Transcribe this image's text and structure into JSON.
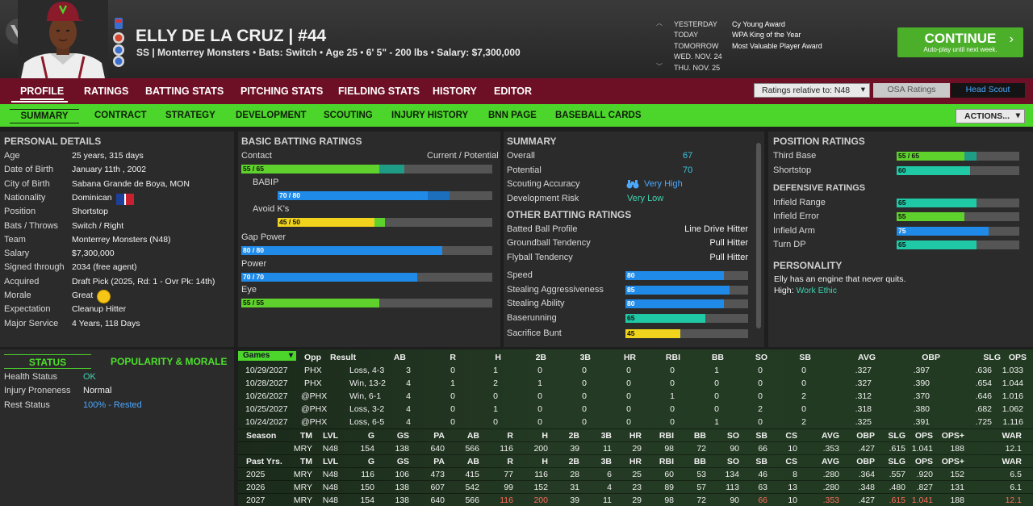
{
  "player": {
    "name": "ELLY DE LA CRUZ",
    "sep": "|",
    "number": "#44",
    "position_team": "SS | Monterrey Monsters",
    "bats": "Bats: Switch",
    "age": "Age 25",
    "height_weight": "6' 5\" - 200 lbs",
    "salary": "Salary: $7,300,000",
    "dot": "•"
  },
  "calendar": [
    {
      "day": "YESTERDAY",
      "event": "Cy Young Award"
    },
    {
      "day": "TODAY",
      "event": "WPA King of the Year"
    },
    {
      "day": "TOMORROW",
      "event": "Most Valuable Player Award"
    },
    {
      "day": "WED. NOV. 24",
      "event": ""
    },
    {
      "day": "THU. NOV. 25",
      "event": ""
    }
  ],
  "calendar_up": "︿",
  "calendar_down": "﹀",
  "continue": {
    "label": "CONTINUE",
    "sub": "Auto-play until next week.",
    "chev": "›"
  },
  "main_tabs": [
    "PROFILE",
    "RATINGS",
    "BATTING STATS",
    "PITCHING STATS",
    "FIELDING STATS",
    "HISTORY",
    "EDITOR"
  ],
  "ratings_relative": "Ratings relative to: N48",
  "dropdown_arrow": "▾",
  "osa_ratings": "OSA Ratings",
  "head_scout": "Head Scout",
  "sub_tabs": [
    "SUMMARY",
    "CONTRACT",
    "STRATEGY",
    "DEVELOPMENT",
    "SCOUTING",
    "INJURY HISTORY",
    "BNN PAGE",
    "BASEBALL CARDS"
  ],
  "actions": "ACTIONS...",
  "personal": {
    "title": "PERSONAL DETAILS",
    "rows": [
      {
        "label": "Age",
        "value": "25 years, 315 days"
      },
      {
        "label": "Date of Birth",
        "value": "January 11th , 2002"
      },
      {
        "label": "City of Birth",
        "value": "Sabana Grande de Boya, MON"
      },
      {
        "label": "Nationality",
        "value": "Dominican"
      },
      {
        "label": "Position",
        "value": "Shortstop"
      },
      {
        "label": "Bats / Throws",
        "value": "Switch / Right"
      },
      {
        "label": "Team",
        "value": "Monterrey Monsters (N48)"
      },
      {
        "label": "Salary",
        "value": "$7,300,000"
      },
      {
        "label": "Signed through",
        "value": "2034 (free agent)"
      },
      {
        "label": "Acquired",
        "value": "Draft Pick (2025, Rd: 1 - Ovr Pk: 14th)"
      },
      {
        "label": "Morale",
        "value": "Great"
      },
      {
        "label": "Expectation",
        "value": "Cleanup Hitter"
      },
      {
        "label": "Major Service",
        "value": "4 Years, 118 Days"
      }
    ]
  },
  "batting": {
    "title": "BASIC BATTING RATINGS",
    "current_potential": "Current / Potential",
    "rows": [
      {
        "label": "Contact",
        "text": "55 / 65",
        "cur": 55,
        "pot": 65,
        "color": "#5fd12c",
        "color2": "#1e9c86",
        "indent": false
      },
      {
        "label": "BABIP",
        "text": "70 / 80",
        "cur": 70,
        "pot": 80,
        "color": "#1f8ae8",
        "color2": "#1c6fbd",
        "indent": true
      },
      {
        "label": "Avoid K's",
        "text": "45 / 50",
        "cur": 45,
        "pot": 50,
        "color": "#f0d31c",
        "color2": "#5fd12c",
        "indent": true
      },
      {
        "label": "Gap Power",
        "text": "80 / 80",
        "cur": 80,
        "pot": 80,
        "color": "#1f8ae8",
        "color2": "#1f8ae8",
        "indent": false
      },
      {
        "label": "Power",
        "text": "70 / 70",
        "cur": 70,
        "pot": 70,
        "color": "#1f8ae8",
        "color2": "#1f8ae8",
        "indent": false
      },
      {
        "label": "Eye",
        "text": "55 / 55",
        "cur": 55,
        "pot": 55,
        "color": "#5fd12c",
        "color2": "#5fd12c",
        "indent": false
      }
    ]
  },
  "summary": {
    "title": "SUMMARY",
    "overall_label": "Overall",
    "overall": "67",
    "potential_label": "Potential",
    "potential": "70",
    "scouting_label": "Scouting Accuracy",
    "scouting": "Very High",
    "devrisk_label": "Development Risk",
    "devrisk": "Very Low",
    "other_title": "OTHER BATTING RATINGS",
    "profiles": [
      {
        "label": "Batted Ball Profile",
        "value": "Line Drive Hitter"
      },
      {
        "label": "Groundball Tendency",
        "value": "Pull Hitter"
      },
      {
        "label": "Flyball Tendency",
        "value": "Pull Hitter"
      }
    ],
    "bars": [
      {
        "label": "Speed",
        "value": 80,
        "text": "80",
        "color": "#1f8ae8"
      },
      {
        "label": "Stealing Aggressiveness",
        "value": 85,
        "text": "85",
        "color": "#1f8ae8"
      },
      {
        "label": "Stealing Ability",
        "value": 80,
        "text": "80",
        "color": "#1f8ae8"
      },
      {
        "label": "Baserunning",
        "value": 65,
        "text": "65",
        "color": "#1fc9a6"
      },
      {
        "label": "Sacrifice Bunt",
        "value": 45,
        "text": "45",
        "color": "#f0d31c"
      }
    ]
  },
  "position": {
    "title": "POSITION RATINGS",
    "rows": [
      {
        "label": "Third Base",
        "text": "55 / 65",
        "cur": 55,
        "pot": 65,
        "color": "#5fd12c",
        "color2": "#1e9c86"
      },
      {
        "label": "Shortstop",
        "text": "60",
        "cur": 60,
        "pot": 60,
        "color": "#1fc9a6",
        "color2": "#1fc9a6"
      }
    ],
    "def_title": "DEFENSIVE RATINGS",
    "def": [
      {
        "label": "Infield Range",
        "text": "65",
        "value": 65,
        "color": "#1fc9a6"
      },
      {
        "label": "Infield Error",
        "text": "55",
        "value": 55,
        "color": "#5fd12c"
      },
      {
        "label": "Infield Arm",
        "text": "75",
        "value": 75,
        "color": "#1f8ae8"
      },
      {
        "label": "Turn DP",
        "text": "65",
        "value": 65,
        "color": "#1fc9a6"
      }
    ],
    "personality_title": "PERSONALITY",
    "personality_text": "Elly has an engine that never quits.",
    "high_label": "High:",
    "high_value": "Work Ethic"
  },
  "status": {
    "tab_status": "STATUS",
    "tab_pop": "POPULARITY & MORALE",
    "rows": [
      {
        "label": "Health Status",
        "value": "OK",
        "color": "#3ed3b0"
      },
      {
        "label": "Injury Proneness",
        "value": "Normal",
        "color": "#f0f0f0"
      },
      {
        "label": "Rest Status",
        "value": "100% - Rested",
        "color": "#4aa8ff"
      }
    ]
  },
  "games": {
    "select": "Games",
    "headers": [
      "Opp",
      "Result",
      "AB",
      "R",
      "H",
      "2B",
      "3B",
      "HR",
      "RBI",
      "BB",
      "SO",
      "SB",
      "AVG",
      "OBP",
      "SLG",
      "OPS"
    ],
    "rows": [
      [
        "10/29/2027",
        "PHX",
        "Loss, 4-3",
        "3",
        "0",
        "1",
        "0",
        "0",
        "0",
        "0",
        "1",
        "0",
        "0",
        ".327",
        ".397",
        ".636",
        "1.033"
      ],
      [
        "10/28/2027",
        "PHX",
        "Win, 13-2",
        "4",
        "1",
        "2",
        "1",
        "0",
        "0",
        "0",
        "0",
        "0",
        "0",
        ".327",
        ".390",
        ".654",
        "1.044"
      ],
      [
        "10/26/2027",
        "@PHX",
        "Win, 6-1",
        "4",
        "0",
        "0",
        "0",
        "0",
        "0",
        "1",
        "0",
        "0",
        "2",
        ".312",
        ".370",
        ".646",
        "1.016"
      ],
      [
        "10/25/2027",
        "@PHX",
        "Loss, 3-2",
        "4",
        "0",
        "1",
        "0",
        "0",
        "0",
        "0",
        "0",
        "2",
        "0",
        ".318",
        ".380",
        ".682",
        "1.062"
      ],
      [
        "10/24/2027",
        "@PHX",
        "Loss, 6-5",
        "4",
        "0",
        "0",
        "0",
        "0",
        "0",
        "0",
        "1",
        "0",
        "2",
        ".325",
        ".391",
        ".725",
        "1.116"
      ]
    ]
  },
  "season": {
    "headers": [
      "Season",
      "TM",
      "LVL",
      "G",
      "GS",
      "PA",
      "AB",
      "R",
      "H",
      "2B",
      "3B",
      "HR",
      "RBI",
      "BB",
      "SO",
      "SB",
      "CS",
      "AVG",
      "OBP",
      "SLG",
      "OPS",
      "OPS+",
      "WAR"
    ],
    "row": [
      "",
      "MRY",
      "N48",
      "154",
      "138",
      "640",
      "566",
      "116",
      "200",
      "39",
      "11",
      "29",
      "98",
      "72",
      "90",
      "66",
      "10",
      ".353",
      ".427",
      ".615",
      "1.041",
      "188",
      "12.1"
    ]
  },
  "past": {
    "headers": [
      "Past Yrs.",
      "TM",
      "LVL",
      "G",
      "GS",
      "PA",
      "AB",
      "R",
      "H",
      "2B",
      "3B",
      "HR",
      "RBI",
      "BB",
      "SO",
      "SB",
      "CS",
      "AVG",
      "OBP",
      "SLG",
      "OPS",
      "OPS+",
      "WAR"
    ],
    "rows": [
      [
        "2025",
        "MRY",
        "N48",
        "116",
        "106",
        "473",
        "415",
        "77",
        "116",
        "28",
        "6",
        "25",
        "60",
        "53",
        "134",
        "46",
        "8",
        ".280",
        ".364",
        ".557",
        ".920",
        "152",
        "6.5"
      ],
      [
        "2026",
        "MRY",
        "N48",
        "150",
        "138",
        "607",
        "542",
        "99",
        "152",
        "31",
        "4",
        "23",
        "89",
        "57",
        "113",
        "63",
        "13",
        ".280",
        ".348",
        ".480",
        ".827",
        "131",
        "6.1"
      ],
      [
        "2027",
        "MRY",
        "N48",
        "154",
        "138",
        "640",
        "566",
        "116",
        "200",
        "39",
        "11",
        "29",
        "98",
        "72",
        "90",
        "66",
        "10",
        ".353",
        ".427",
        ".615",
        "1.041",
        "188",
        "12.1"
      ]
    ],
    "highlight_2027": [
      7,
      8,
      15,
      17,
      19,
      20,
      22
    ]
  }
}
